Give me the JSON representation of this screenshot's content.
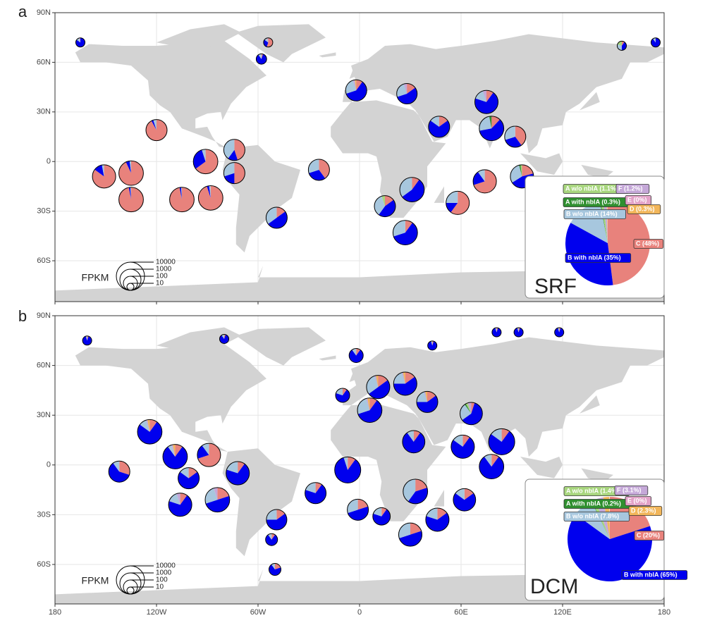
{
  "chart_data": [
    {
      "type": "map-pie",
      "panel_label": "a",
      "depth": "SRF",
      "xlim": [
        -180,
        180
      ],
      "ylim": [
        -84.7,
        90
      ],
      "xticks": [
        -180,
        -120,
        -60,
        0,
        60,
        120,
        180
      ],
      "yticks": [
        {
          "value": 90,
          "label": "90N"
        },
        {
          "value": 60,
          "label": "60N"
        },
        {
          "value": 30,
          "label": "30N"
        },
        {
          "value": 0,
          "label": "0"
        },
        {
          "value": -30,
          "label": "30S"
        },
        {
          "value": -60,
          "label": "60S"
        }
      ],
      "colors": [
        "#e8827c",
        "#0000ee",
        "#a7c7de",
        "#2f8f2f",
        "#a8d67e",
        "#c5a8d8",
        "#e3a3c8",
        "#f2b65a"
      ],
      "summary": {
        "values": [
          48,
          35,
          14,
          0.3,
          1.1,
          1.2,
          0,
          0.3
        ],
        "value_labels": [
          "C (48%)",
          "B with nblA (35%)",
          "B w/o nblA (14%)",
          "A with nblA (0.3%)",
          "A w/o nblA (1.1%)",
          "F (1.2%)",
          "E (0%)",
          "D (0.3%)"
        ]
      },
      "size_legend": {
        "title": "FPKM",
        "values": [
          10000,
          1000,
          100,
          10
        ]
      },
      "sites": [
        {
          "lon": -135,
          "lat": -7,
          "fpkm": 3000,
          "values": [
            93,
            5,
            2,
            0,
            0,
            0,
            0,
            0
          ]
        },
        {
          "lon": -120,
          "lat": 19,
          "fpkm": 1000,
          "values": [
            92,
            3,
            5,
            0,
            0,
            0,
            0,
            0
          ]
        },
        {
          "lon": -151,
          "lat": -9,
          "fpkm": 2000,
          "values": [
            85,
            12,
            3,
            0,
            0,
            0,
            0,
            0
          ]
        },
        {
          "lon": -135,
          "lat": -23,
          "fpkm": 3000,
          "values": [
            97,
            2,
            1,
            0,
            0,
            0,
            0,
            0
          ]
        },
        {
          "lon": -105,
          "lat": -23,
          "fpkm": 3000,
          "values": [
            97,
            2,
            1,
            0,
            0,
            0,
            0,
            0
          ]
        },
        {
          "lon": -88,
          "lat": -22,
          "fpkm": 3000,
          "values": [
            95,
            3,
            2,
            0,
            0,
            0,
            0,
            0
          ]
        },
        {
          "lon": -91,
          "lat": 0,
          "fpkm": 3000,
          "values": [
            65,
            30,
            5,
            0,
            0,
            0,
            0,
            0
          ]
        },
        {
          "lon": -74,
          "lat": 7,
          "fpkm": 1000,
          "values": [
            45,
            15,
            40,
            0,
            0,
            0,
            0,
            0
          ]
        },
        {
          "lon": -74,
          "lat": -7,
          "fpkm": 1000,
          "values": [
            50,
            20,
            30,
            0,
            0,
            0,
            0,
            0
          ]
        },
        {
          "lon": -49,
          "lat": -34,
          "fpkm": 1000,
          "values": [
            15,
            50,
            35,
            0,
            0,
            0,
            0,
            0
          ]
        },
        {
          "lon": -24,
          "lat": -5,
          "fpkm": 1000,
          "values": [
            40,
            30,
            30,
            0,
            0,
            0,
            0,
            0
          ]
        },
        {
          "lon": -2,
          "lat": 43,
          "fpkm": 1000,
          "values": [
            10,
            60,
            25,
            0,
            0,
            3,
            0,
            2
          ]
        },
        {
          "lon": 28,
          "lat": 41,
          "fpkm": 800,
          "values": [
            15,
            55,
            25,
            0,
            0,
            5,
            0,
            0
          ]
        },
        {
          "lon": 31,
          "lat": -17,
          "fpkm": 3000,
          "values": [
            10,
            55,
            35,
            0,
            0,
            0,
            0,
            0
          ]
        },
        {
          "lon": 15,
          "lat": -27,
          "fpkm": 1000,
          "values": [
            15,
            45,
            35,
            0,
            5,
            0,
            0,
            0
          ]
        },
        {
          "lon": 27,
          "lat": -43,
          "fpkm": 3000,
          "values": [
            10,
            60,
            30,
            0,
            0,
            0,
            0,
            0
          ]
        },
        {
          "lon": 78,
          "lat": 20,
          "fpkm": 3000,
          "values": [
            12,
            60,
            25,
            3,
            0,
            0,
            0,
            0
          ]
        },
        {
          "lon": 75,
          "lat": 36,
          "fpkm": 2000,
          "values": [
            10,
            70,
            15,
            0,
            0,
            5,
            0,
            0
          ]
        },
        {
          "lon": 58,
          "lat": -25,
          "fpkm": 2000,
          "values": [
            60,
            15,
            25,
            0,
            0,
            0,
            0,
            0
          ]
        },
        {
          "lon": 96,
          "lat": -9,
          "fpkm": 2000,
          "values": [
            21,
            45,
            30,
            2,
            2,
            0,
            0,
            0
          ]
        },
        {
          "lon": 74,
          "lat": -12,
          "fpkm": 2000,
          "values": [
            70,
            20,
            10,
            0,
            0,
            0,
            0,
            0
          ]
        },
        {
          "lon": 92,
          "lat": 15,
          "fpkm": 1000,
          "values": [
            40,
            30,
            30,
            0,
            0,
            0,
            0,
            0
          ]
        },
        {
          "lon": 47,
          "lat": 21,
          "fpkm": 1000,
          "values": [
            15,
            70,
            15,
            0,
            0,
            0,
            0,
            0
          ]
        },
        {
          "lon": -165,
          "lat": 72,
          "fpkm": 20,
          "values": [
            0,
            85,
            10,
            0,
            0,
            5,
            0,
            0
          ]
        },
        {
          "lon": -54,
          "lat": 72,
          "fpkm": 20,
          "values": [
            55,
            30,
            10,
            0,
            0,
            5,
            0,
            0
          ]
        },
        {
          "lon": 155,
          "lat": 70,
          "fpkm": 20,
          "values": [
            10,
            40,
            30,
            0,
            20,
            0,
            0,
            0
          ]
        },
        {
          "lon": 175,
          "lat": 72,
          "fpkm": 20,
          "values": [
            0,
            90,
            10,
            0,
            0,
            0,
            0,
            0
          ]
        },
        {
          "lon": -58,
          "lat": 62,
          "fpkm": 30,
          "values": [
            5,
            85,
            10,
            0,
            0,
            0,
            0,
            0
          ]
        }
      ]
    },
    {
      "type": "map-pie",
      "panel_label": "b",
      "depth": "DCM",
      "xlim": [
        -180,
        180
      ],
      "ylim": [
        -83.8,
        90
      ],
      "xticks": [
        {
          "value": -180,
          "label": "180"
        },
        {
          "value": -120,
          "label": "120W"
        },
        {
          "value": -60,
          "label": "60W"
        },
        0,
        {
          "value": 60,
          "label": "60E"
        },
        {
          "value": 120,
          "label": "120E"
        },
        {
          "value": 180,
          "label": "180"
        }
      ],
      "yticks": [
        {
          "value": 90,
          "label": "90N"
        },
        {
          "value": 60,
          "label": "60N"
        },
        {
          "value": 30,
          "label": "30N"
        },
        {
          "value": 0,
          "label": "0"
        },
        {
          "value": -30,
          "label": "30S"
        },
        {
          "value": -60,
          "label": "60S"
        }
      ],
      "colors": [
        "#e8827c",
        "#0000ee",
        "#a7c7de",
        "#2f8f2f",
        "#a8d67e",
        "#c5a8d8",
        "#e3a3c8",
        "#f2b65a"
      ],
      "summary": {
        "values": [
          20,
          65,
          7.8,
          0.2,
          1.4,
          3.1,
          0,
          2.3
        ],
        "value_labels": [
          "C (20%)",
          "B with nblA (65%)",
          "B w/o nblA (7.8%)",
          "A with nblA (0.2%)",
          "A w/o nblA (1.4%)",
          "F (3.1%)",
          "E (0%)",
          "D (2.3%)"
        ]
      },
      "size_legend": {
        "title": "FPKM",
        "values": [
          10000,
          1000,
          100,
          10
        ]
      },
      "sites": [
        {
          "lon": -124,
          "lat": 20,
          "fpkm": 3000,
          "values": [
            10,
            75,
            10,
            0,
            0,
            2,
            0,
            3
          ]
        },
        {
          "lon": -109,
          "lat": 5,
          "fpkm": 3000,
          "values": [
            10,
            80,
            5,
            0,
            0,
            2,
            0,
            3
          ]
        },
        {
          "lon": -89,
          "lat": 6,
          "fpkm": 2000,
          "values": [
            70,
            20,
            10,
            0,
            0,
            0,
            0,
            0
          ]
        },
        {
          "lon": -72,
          "lat": -5,
          "fpkm": 2000,
          "values": [
            10,
            70,
            20,
            0,
            0,
            0,
            0,
            0
          ]
        },
        {
          "lon": -142,
          "lat": -4,
          "fpkm": 1000,
          "values": [
            30,
            60,
            10,
            0,
            0,
            0,
            0,
            0
          ]
        },
        {
          "lon": -101,
          "lat": -8,
          "fpkm": 1000,
          "values": [
            15,
            70,
            15,
            0,
            0,
            0,
            0,
            0
          ]
        },
        {
          "lon": -106,
          "lat": -24,
          "fpkm": 2000,
          "values": [
            10,
            70,
            15,
            0,
            0,
            5,
            0,
            0
          ]
        },
        {
          "lon": -84,
          "lat": -21,
          "fpkm": 3000,
          "values": [
            20,
            50,
            25,
            0,
            0,
            5,
            0,
            0
          ]
        },
        {
          "lon": -49,
          "lat": -33,
          "fpkm": 800,
          "values": [
            15,
            60,
            25,
            0,
            0,
            0,
            0,
            0
          ]
        },
        {
          "lon": -26,
          "lat": -17,
          "fpkm": 1000,
          "values": [
            10,
            70,
            20,
            0,
            0,
            0,
            0,
            0
          ]
        },
        {
          "lon": -7,
          "lat": -3,
          "fpkm": 5000,
          "values": [
            10,
            85,
            5,
            0,
            0,
            0,
            0,
            0
          ]
        },
        {
          "lon": 11,
          "lat": 47,
          "fpkm": 2000,
          "values": [
            15,
            50,
            30,
            0,
            0,
            2,
            0,
            3
          ]
        },
        {
          "lon": 27,
          "lat": 49,
          "fpkm": 2000,
          "values": [
            15,
            60,
            20,
            0,
            0,
            2,
            0,
            3
          ]
        },
        {
          "lon": 6,
          "lat": 33,
          "fpkm": 3000,
          "values": [
            10,
            60,
            25,
            0,
            0,
            2,
            0,
            3
          ]
        },
        {
          "lon": 40,
          "lat": 38,
          "fpkm": 1000,
          "values": [
            15,
            60,
            20,
            0,
            0,
            2,
            0,
            3
          ]
        },
        {
          "lon": 32,
          "lat": 14,
          "fpkm": 1500,
          "values": [
            10,
            80,
            10,
            0,
            0,
            0,
            0,
            0
          ]
        },
        {
          "lon": 66,
          "lat": 31,
          "fpkm": 1500,
          "values": [
            5,
            60,
            25,
            2,
            3,
            5,
            0,
            0
          ]
        },
        {
          "lon": 61,
          "lat": 11,
          "fpkm": 2000,
          "values": [
            10,
            75,
            15,
            0,
            0,
            0,
            0,
            0
          ]
        },
        {
          "lon": 84,
          "lat": 14,
          "fpkm": 5000,
          "values": [
            10,
            75,
            15,
            0,
            0,
            0,
            0,
            0
          ]
        },
        {
          "lon": 78,
          "lat": -1,
          "fpkm": 3000,
          "values": [
            10,
            80,
            10,
            0,
            0,
            0,
            0,
            0
          ]
        },
        {
          "lon": 33,
          "lat": -16,
          "fpkm": 3000,
          "values": [
            20,
            40,
            40,
            0,
            0,
            0,
            0,
            0
          ]
        },
        {
          "lon": 62,
          "lat": -21,
          "fpkm": 1500,
          "values": [
            15,
            70,
            15,
            0,
            0,
            0,
            0,
            0
          ]
        },
        {
          "lon": 30,
          "lat": -42,
          "fpkm": 2000,
          "values": [
            20,
            50,
            30,
            0,
            0,
            0,
            0,
            0
          ]
        },
        {
          "lon": 46,
          "lat": -33,
          "fpkm": 2000,
          "values": [
            15,
            65,
            20,
            0,
            0,
            0,
            0,
            0
          ]
        },
        {
          "lon": -1,
          "lat": -27,
          "fpkm": 1000,
          "values": [
            20,
            50,
            30,
            0,
            0,
            0,
            0,
            0
          ]
        },
        {
          "lon": 13,
          "lat": -31,
          "fpkm": 300,
          "values": [
            10,
            70,
            20,
            0,
            0,
            0,
            0,
            0
          ]
        },
        {
          "lon": -161,
          "lat": 75,
          "fpkm": 20,
          "values": [
            5,
            90,
            5,
            0,
            0,
            0,
            0,
            0
          ]
        },
        {
          "lon": -80,
          "lat": 76,
          "fpkm": 20,
          "values": [
            5,
            85,
            10,
            0,
            0,
            0,
            0,
            0
          ]
        },
        {
          "lon": 43,
          "lat": 72,
          "fpkm": 20,
          "values": [
            5,
            90,
            5,
            0,
            0,
            0,
            0,
            0
          ]
        },
        {
          "lon": 81,
          "lat": 80,
          "fpkm": 20,
          "values": [
            5,
            90,
            5,
            0,
            0,
            0,
            0,
            0
          ]
        },
        {
          "lon": 94,
          "lat": 80,
          "fpkm": 20,
          "values": [
            5,
            90,
            5,
            0,
            0,
            0,
            0,
            0
          ]
        },
        {
          "lon": 118,
          "lat": 80,
          "fpkm": 20,
          "values": [
            5,
            90,
            5,
            0,
            0,
            0,
            0,
            0
          ]
        },
        {
          "lon": -10,
          "lat": 42,
          "fpkm": 100,
          "values": [
            10,
            70,
            20,
            0,
            0,
            0,
            0,
            0
          ]
        },
        {
          "lon": -2,
          "lat": 66,
          "fpkm": 100,
          "values": [
            10,
            80,
            10,
            0,
            0,
            0,
            0,
            0
          ]
        },
        {
          "lon": -52,
          "lat": -45,
          "fpkm": 50,
          "values": [
            10,
            80,
            10,
            0,
            0,
            0,
            0,
            0
          ]
        },
        {
          "lon": -50,
          "lat": -63,
          "fpkm": 50,
          "values": [
            20,
            70,
            10,
            0,
            0,
            0,
            0,
            0
          ]
        }
      ]
    }
  ]
}
